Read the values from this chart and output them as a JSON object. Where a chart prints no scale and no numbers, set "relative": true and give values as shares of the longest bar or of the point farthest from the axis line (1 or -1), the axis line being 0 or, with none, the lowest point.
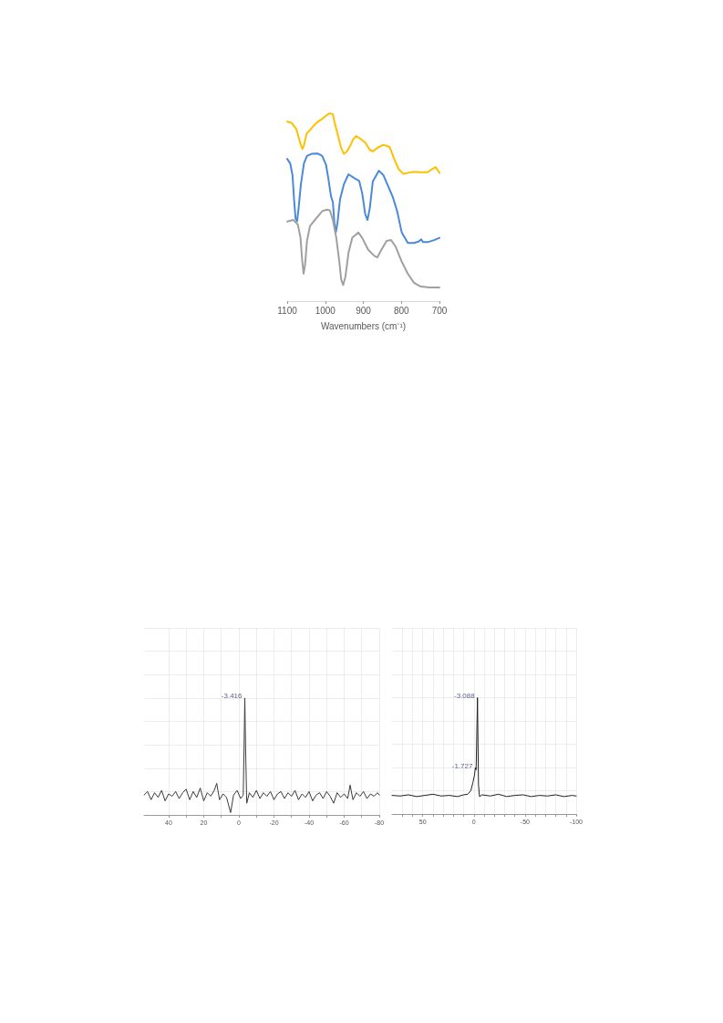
{
  "chart_data": [
    {
      "type": "line",
      "relative": true,
      "xlabel": "Wavenumbers (cm⁻¹)",
      "xlim": [
        1100,
        700
      ],
      "xticks": [
        1100,
        1000,
        900,
        800,
        700
      ],
      "grid": false,
      "series": [
        {
          "color": "#ffc000",
          "x": [
            1100,
            1088,
            1076,
            1065,
            1060,
            1056,
            1049,
            1040,
            1024,
            1008,
            996,
            988,
            980,
            976,
            968,
            958,
            951,
            943,
            934,
            927,
            919,
            907,
            895,
            883,
            875,
            863,
            847,
            831,
            819,
            807,
            795,
            783,
            767,
            751,
            731,
            718,
            710,
            700
          ],
          "values": [
            0.956,
            0.948,
            0.916,
            0.837,
            0.81,
            0.829,
            0.892,
            0.911,
            0.948,
            0.971,
            0.99,
            1.0,
            0.995,
            0.956,
            0.892,
            0.814,
            0.784,
            0.797,
            0.829,
            0.86,
            0.879,
            0.863,
            0.844,
            0.805,
            0.797,
            0.816,
            0.832,
            0.821,
            0.757,
            0.702,
            0.678,
            0.683,
            0.689,
            0.686,
            0.686,
            0.705,
            0.714,
            0.683
          ]
        },
        {
          "color": "#4a8ad8",
          "x": [
            1100,
            1092,
            1086,
            1082,
            1078,
            1074,
            1070,
            1064,
            1056,
            1048,
            1036,
            1020,
            1008,
            998,
            992,
            985,
            980,
            976,
            972,
            968,
            961,
            951,
            939,
            923,
            911,
            903,
            895,
            889,
            883,
            875,
            859,
            847,
            835,
            823,
            811,
            799,
            783,
            767,
            755,
            748,
            743,
            731,
            714,
            700
          ],
          "values": [
            0.757,
            0.733,
            0.67,
            0.543,
            0.44,
            0.425,
            0.495,
            0.622,
            0.733,
            0.773,
            0.784,
            0.786,
            0.773,
            0.726,
            0.654,
            0.559,
            0.527,
            0.416,
            0.368,
            0.416,
            0.544,
            0.622,
            0.675,
            0.654,
            0.641,
            0.575,
            0.463,
            0.432,
            0.495,
            0.638,
            0.694,
            0.67,
            0.613,
            0.557,
            0.478,
            0.365,
            0.31,
            0.31,
            0.317,
            0.329,
            0.314,
            0.314,
            0.325,
            0.337
          ]
        },
        {
          "color": "#a0a0a0",
          "x": [
            1100,
            1084,
            1072,
            1065,
            1061,
            1057,
            1053,
            1048,
            1040,
            1024,
            1008,
            996,
            988,
            980,
            971,
            963,
            958,
            953,
            947,
            939,
            929,
            913,
            903,
            887,
            871,
            863,
            855,
            839,
            827,
            815,
            799,
            783,
            767,
            751,
            727,
            700
          ],
          "values": [
            0.424,
            0.432,
            0.408,
            0.337,
            0.226,
            0.146,
            0.194,
            0.321,
            0.4,
            0.44,
            0.479,
            0.487,
            0.483,
            0.432,
            0.337,
            0.21,
            0.114,
            0.086,
            0.13,
            0.257,
            0.337,
            0.365,
            0.337,
            0.273,
            0.241,
            0.233,
            0.265,
            0.321,
            0.325,
            0.29,
            0.21,
            0.146,
            0.098,
            0.079,
            0.073,
            0.073
          ]
        }
      ]
    },
    {
      "type": "line",
      "relative": true,
      "xlim": [
        54,
        -80
      ],
      "xticks": [
        40,
        {
          "value": 30,
          "label": null
        },
        20,
        {
          "value": 10,
          "label": null
        },
        0,
        {
          "value": -10,
          "label": null
        },
        -20,
        {
          "value": -30,
          "label": null
        },
        -40,
        {
          "value": -50,
          "label": null
        },
        -60,
        {
          "value": -70,
          "label": null
        },
        -80
      ],
      "grid": true,
      "tick_labels": "x",
      "annotations": [
        {
          "text": "-3.416",
          "x": -3.4,
          "y": 1
        }
      ],
      "series": [
        {
          "color": "#3a3a3a",
          "x": [
            54,
            52,
            50,
            48,
            46,
            44,
            42,
            40,
            38,
            36,
            34,
            32,
            30,
            28,
            26,
            24,
            22,
            20,
            18,
            16,
            14,
            12.6,
            11,
            9,
            7,
            4.7,
            3,
            1,
            -1,
            -2.5,
            -3,
            -3.4,
            -3.8,
            -4.5,
            -6,
            -8,
            -10,
            -12,
            -14,
            -16,
            -18,
            -20,
            -22,
            -24,
            -26,
            -28,
            -30,
            -32,
            -34,
            -36,
            -38,
            -40,
            -42,
            -44,
            -46,
            -48,
            -50,
            -52,
            -54,
            -56,
            -58,
            -60,
            -62,
            -63.4,
            -65,
            -67,
            -69,
            -71,
            -73,
            -75,
            -77,
            -79,
            -80
          ],
          "values": [
            0.17,
            0.2,
            0.13,
            0.19,
            0.15,
            0.21,
            0.12,
            0.18,
            0.16,
            0.2,
            0.14,
            0.19,
            0.22,
            0.13,
            0.2,
            0.15,
            0.23,
            0.12,
            0.19,
            0.16,
            0.21,
            0.27,
            0.13,
            0.18,
            0.15,
            0.02,
            0.17,
            0.21,
            0.14,
            0.17,
            0.6,
            1,
            0.6,
            0.1,
            0.19,
            0.15,
            0.21,
            0.14,
            0.19,
            0.16,
            0.2,
            0.13,
            0.18,
            0.2,
            0.14,
            0.19,
            0.16,
            0.21,
            0.13,
            0.18,
            0.15,
            0.2,
            0.12,
            0.17,
            0.19,
            0.14,
            0.2,
            0.16,
            0.1,
            0.19,
            0.15,
            0.18,
            0.14,
            0.255,
            0.13,
            0.19,
            0.16,
            0.2,
            0.14,
            0.18,
            0.16,
            0.19,
            0.17
          ]
        }
      ]
    },
    {
      "type": "line",
      "relative": true,
      "xlim": [
        80,
        -100
      ],
      "xticks": [
        {
          "value": 70,
          "label": null
        },
        {
          "value": 60,
          "label": null
        },
        50,
        {
          "value": 40,
          "label": null
        },
        {
          "value": 30,
          "label": null
        },
        {
          "value": 20,
          "label": null
        },
        {
          "value": 10,
          "label": null
        },
        0,
        {
          "value": -10,
          "label": null
        },
        {
          "value": -20,
          "label": null
        },
        {
          "value": -30,
          "label": null
        },
        {
          "value": -40,
          "label": null
        },
        -50,
        {
          "value": -60,
          "label": null
        },
        {
          "value": -70,
          "label": null
        },
        {
          "value": -80,
          "label": null
        },
        {
          "value": -90,
          "label": null
        },
        -100
      ],
      "grid": true,
      "tick_labels": "x",
      "annotations": [
        {
          "text": "-1.727",
          "x": -1.5,
          "y": 0.4
        },
        {
          "text": "-3.088",
          "x": -3.5,
          "y": 1
        }
      ],
      "series": [
        {
          "color": "#202020",
          "x": [
            80,
            72,
            64,
            56,
            48,
            40,
            32,
            24,
            16,
            10,
            6,
            3,
            1,
            -0.5,
            -1.5,
            -2.2,
            -3.5,
            -4.5,
            -5.5,
            -8,
            -16,
            -24,
            -32,
            -40,
            -48,
            -56,
            -64,
            -72,
            -80,
            -88,
            -96,
            -100
          ],
          "values": [
            0.16,
            0.155,
            0.165,
            0.15,
            0.16,
            0.17,
            0.155,
            0.16,
            0.15,
            0.165,
            0.17,
            0.2,
            0.27,
            0.33,
            0.4,
            0.38,
            1,
            0.25,
            0.15,
            0.165,
            0.155,
            0.17,
            0.15,
            0.16,
            0.165,
            0.15,
            0.16,
            0.155,
            0.165,
            0.15,
            0.16,
            0.155
          ]
        }
      ]
    }
  ]
}
